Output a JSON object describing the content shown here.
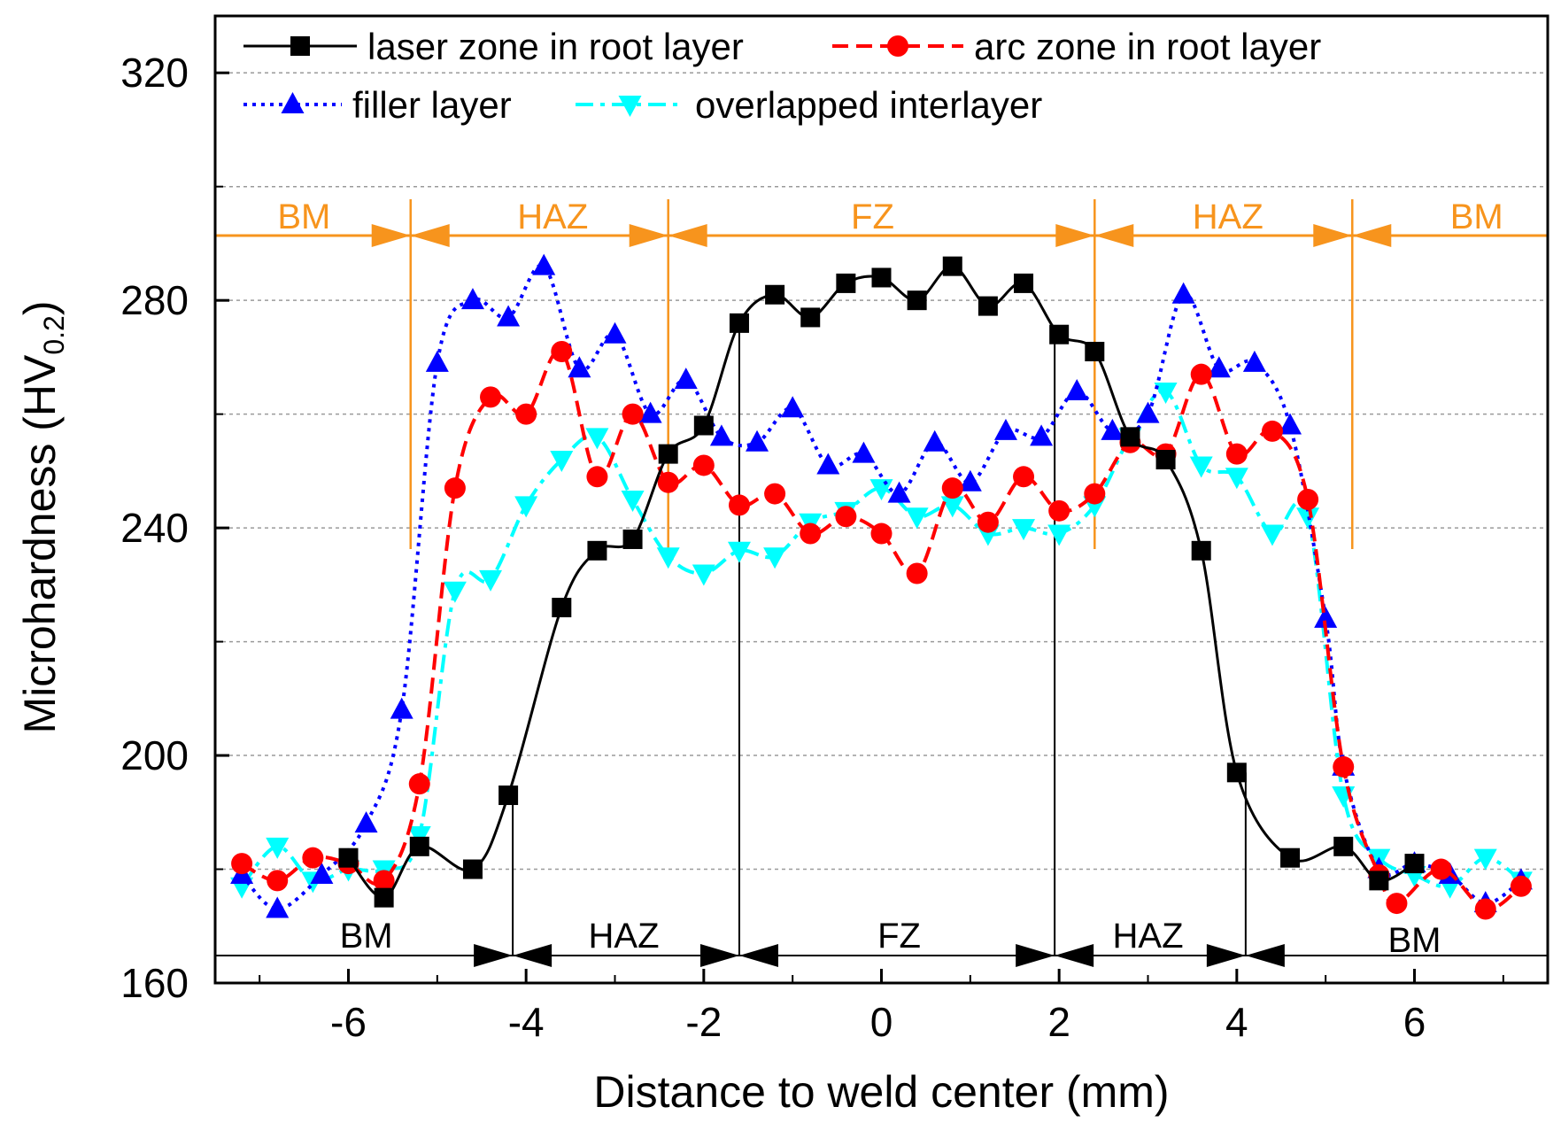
{
  "chart_data": {
    "type": "line",
    "title": "",
    "xlabel": "Distance to weld center (mm)",
    "ylabel_main": "Microhardness (HV",
    "ylabel_sub": "0.2",
    "ylabel_close": ")",
    "xlim": [
      -7.5,
      7.5
    ],
    "ylim": [
      160,
      330
    ],
    "xticks": [
      -6,
      -4,
      -2,
      0,
      2,
      4,
      6
    ],
    "xtick_labels": [
      "-6",
      "-4",
      "-2",
      "0",
      "2",
      "4",
      "6"
    ],
    "yticks": [
      160,
      200,
      240,
      280,
      320
    ],
    "ytick_labels": [
      "160",
      "200",
      "240",
      "280",
      "320"
    ],
    "grid": "dashed horizontal",
    "series": [
      {
        "name": "laser zone in root layer",
        "color": "#000000",
        "marker": "square",
        "dash": "solid",
        "x": [
          -6.0,
          -5.6,
          -5.2,
          -4.6,
          -4.2,
          -3.6,
          -3.2,
          -2.8,
          -2.4,
          -2.0,
          -1.6,
          -1.2,
          -0.8,
          -0.4,
          0.0,
          0.4,
          0.8,
          1.2,
          1.6,
          2.0,
          2.4,
          2.8,
          3.2,
          3.6,
          4.0,
          4.6,
          5.2,
          5.6,
          6.0
        ],
        "y": [
          182,
          175,
          184,
          180,
          193,
          226,
          236,
          238,
          253,
          258,
          276,
          281,
          277,
          283,
          284,
          280,
          286,
          279,
          283,
          274,
          271,
          256,
          252,
          236,
          197,
          182,
          184,
          178,
          181
        ]
      },
      {
        "name": "arc zone in root layer",
        "color": "#FF0000",
        "marker": "circle",
        "dash": "dashed",
        "x": [
          -7.2,
          -6.8,
          -6.4,
          -6.0,
          -5.6,
          -5.2,
          -4.8,
          -4.4,
          -4.0,
          -3.6,
          -3.2,
          -2.8,
          -2.4,
          -2.0,
          -1.6,
          -1.2,
          -0.8,
          -0.4,
          0.0,
          0.4,
          0.8,
          1.2,
          1.6,
          2.0,
          2.4,
          2.8,
          3.2,
          3.6,
          4.0,
          4.4,
          4.8,
          5.2,
          5.6,
          5.8,
          6.3,
          6.8,
          7.2
        ],
        "y": [
          181,
          178,
          182,
          181,
          178,
          195,
          247,
          263,
          260,
          271,
          249,
          260,
          248,
          251,
          244,
          246,
          239,
          242,
          239,
          232,
          247,
          241,
          249,
          243,
          246,
          255,
          253,
          267,
          253,
          257,
          245,
          198,
          179,
          174,
          180,
          173,
          177
        ]
      },
      {
        "name": "filler layer",
        "color": "#0000FF",
        "marker": "triangle-up",
        "dash": "dotted",
        "x": [
          -7.2,
          -6.8,
          -6.3,
          -5.8,
          -5.4,
          -5.0,
          -4.6,
          -4.2,
          -3.8,
          -3.4,
          -3.0,
          -2.6,
          -2.2,
          -1.8,
          -1.4,
          -1.0,
          -0.6,
          -0.2,
          0.2,
          0.6,
          1.0,
          1.4,
          1.8,
          2.2,
          2.6,
          3.0,
          3.4,
          3.8,
          4.2,
          4.6,
          5.0,
          5.2,
          5.6,
          6.0,
          6.4,
          6.8,
          7.2
        ],
        "y": [
          179,
          173,
          179,
          188,
          208,
          269,
          280,
          277,
          286,
          268,
          274,
          260,
          266,
          256,
          255,
          261,
          251,
          253,
          246,
          255,
          248,
          257,
          256,
          264,
          257,
          260,
          281,
          268,
          269,
          258,
          224,
          198,
          180,
          181,
          179,
          174,
          178
        ]
      },
      {
        "name": "overlapped interlayer",
        "color": "#00FFFF",
        "marker": "triangle-down",
        "dash": "dashdot",
        "x": [
          -7.2,
          -6.8,
          -6.4,
          -6.0,
          -5.6,
          -5.2,
          -4.8,
          -4.4,
          -4.0,
          -3.6,
          -3.2,
          -2.8,
          -2.4,
          -2.0,
          -1.6,
          -1.2,
          -0.8,
          -0.4,
          0.0,
          0.4,
          0.8,
          1.2,
          1.6,
          2.0,
          2.4,
          2.8,
          3.2,
          3.6,
          4.0,
          4.4,
          4.8,
          5.2,
          5.6,
          6.0,
          6.4,
          6.8,
          7.2
        ],
        "y": [
          177,
          184,
          178,
          180,
          180,
          186,
          229,
          231,
          244,
          252,
          256,
          245,
          235,
          232,
          236,
          235,
          241,
          243,
          247,
          242,
          244,
          239,
          240,
          239,
          244,
          256,
          264,
          251,
          249,
          239,
          242,
          193,
          182,
          179,
          177,
          182,
          178
        ]
      }
    ],
    "legend_position": "top-left",
    "zones_top": {
      "color": "#F7941D",
      "boundaries": [
        -5.3,
        -2.4,
        2.4,
        5.3
      ],
      "labels": [
        {
          "text": "BM",
          "x": -6.5
        },
        {
          "text": "HAZ",
          "x": -3.7
        },
        {
          "text": "FZ",
          "x": -0.1
        },
        {
          "text": "HAZ",
          "x": 3.9
        },
        {
          "text": "BM",
          "x": 6.7
        }
      ]
    },
    "zones_bottom": {
      "color": "#000000",
      "boundaries": [
        -4.15,
        -1.6,
        1.95,
        4.1
      ],
      "labels": [
        {
          "text": "BM",
          "x": -5.8
        },
        {
          "text": "HAZ",
          "x": -2.9
        },
        {
          "text": "FZ",
          "x": 0.2
        },
        {
          "text": "HAZ",
          "x": 3.0
        },
        {
          "text": "BM",
          "x": 6.0
        }
      ]
    }
  }
}
